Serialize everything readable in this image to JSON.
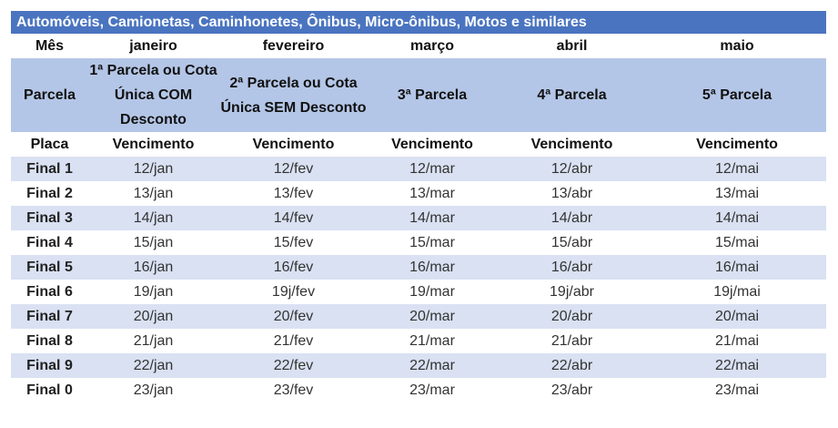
{
  "title": "Automóveis, Camionetas, Caminhonetes, Ônibus, Micro-ônibus, Motos e similares",
  "months": [
    "Mês",
    "janeiro",
    "fevereiro",
    "março",
    "abril",
    "maio"
  ],
  "parcelas": [
    "Parcela",
    "1ª Parcela ou Cota Única COM Desconto",
    "2ª Parcela ou Cota Única SEM Desconto",
    "3ª Parcela",
    "4ª Parcela",
    "5ª Parcela"
  ],
  "venc": [
    "Placa",
    "Vencimento",
    "Vencimento",
    "Vencimento",
    "Vencimento",
    "Vencimento"
  ],
  "colors": {
    "header": "#4a74c0",
    "parcela_row": "#b4c6e7",
    "stripe": "#d9e1f2"
  },
  "rows": [
    [
      "Final 1",
      "12/jan",
      "12/fev",
      "12/mar",
      "12/abr",
      "12/mai"
    ],
    [
      "Final 2",
      "13/jan",
      "13/fev",
      "13/mar",
      "13/abr",
      "13/mai"
    ],
    [
      "Final 3",
      "14/jan",
      "14/fev",
      "14/mar",
      "14/abr",
      "14/mai"
    ],
    [
      "Final 4",
      "15/jan",
      "15/fev",
      "15/mar",
      "15/abr",
      "15/mai"
    ],
    [
      "Final 5",
      "16/jan",
      "16/fev",
      "16/mar",
      "16/abr",
      "16/mai"
    ],
    [
      "Final 6",
      "19/jan",
      "19j/fev",
      "19/mar",
      "19j/abr",
      "19j/mai"
    ],
    [
      "Final 7",
      "20/jan",
      "20/fev",
      "20/mar",
      "20/abr",
      "20/mai"
    ],
    [
      "Final 8",
      "21/jan",
      "21/fev",
      "21/mar",
      "21/abr",
      "21/mai"
    ],
    [
      "Final 9",
      "22/jan",
      "22/fev",
      "22/mar",
      "22/abr",
      "22/mai"
    ],
    [
      "Final 0",
      "23/jan",
      "23/fev",
      "23/mar",
      "23/abr",
      "23/mai"
    ]
  ]
}
